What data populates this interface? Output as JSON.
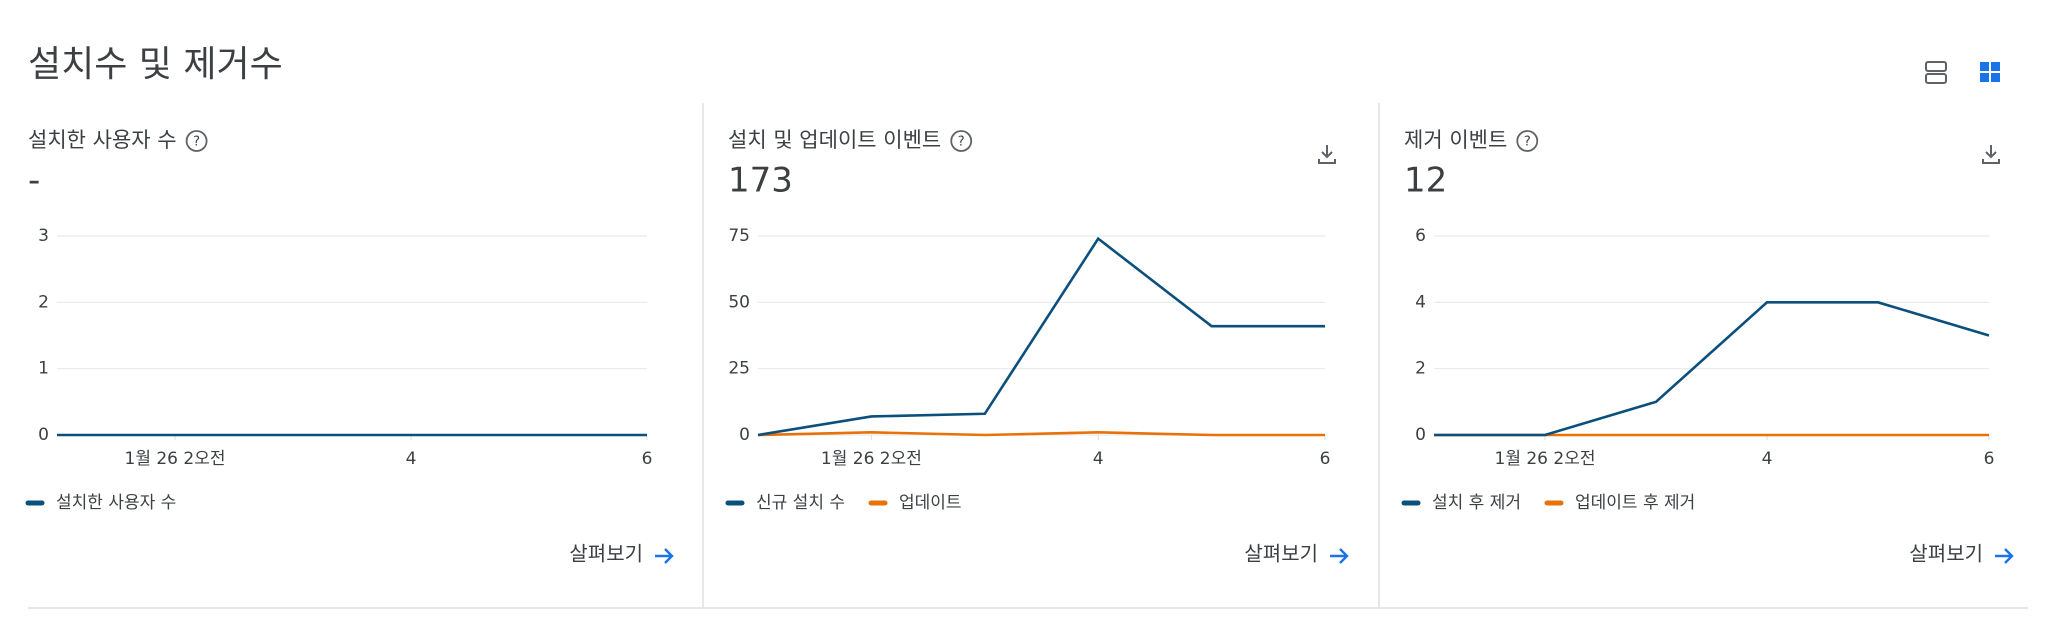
{
  "header": {
    "title": "설치수 및 제거수"
  },
  "chart_data": [
    {
      "type": "line",
      "title": "설치한 사용자 수",
      "total": "-",
      "link": "살펴보기",
      "x": [
        1,
        2,
        3,
        4,
        5,
        6
      ],
      "xlim": [
        1,
        6
      ],
      "xticks": [
        {
          "value": 2,
          "label": "1월 26 2오전"
        },
        4,
        6
      ],
      "ylim": [
        0,
        3
      ],
      "yticks": [
        0,
        1,
        2,
        3
      ],
      "grid": true,
      "series": [
        {
          "name": "설치한 사용자 수",
          "color": "#0b4f7c",
          "values": [
            0,
            0,
            0,
            0,
            0,
            0
          ]
        }
      ]
    },
    {
      "type": "line",
      "title": "설치 및 업데이트 이벤트",
      "total": 173,
      "link": "살펴보기",
      "x": [
        1,
        2,
        3,
        4,
        5,
        6
      ],
      "xlim": [
        1,
        6
      ],
      "xticks": [
        {
          "value": 2,
          "label": "1월 26 2오전"
        },
        4,
        6
      ],
      "ylim": [
        0,
        75
      ],
      "yticks": [
        0,
        25,
        50,
        75
      ],
      "grid": true,
      "series": [
        {
          "name": "신규 설치 수",
          "color": "#0b4f7c",
          "values": [
            0,
            7,
            8,
            74,
            41,
            41
          ]
        },
        {
          "name": "업데이트",
          "color": "#e8710a",
          "values": [
            0,
            1,
            0,
            1,
            0,
            0
          ]
        }
      ]
    },
    {
      "type": "line",
      "title": "제거 이벤트",
      "total": 12,
      "link": "살펴보기",
      "x": [
        1,
        2,
        3,
        4,
        5,
        6
      ],
      "xlim": [
        1,
        6
      ],
      "xticks": [
        {
          "value": 2,
          "label": "1월 26 2오전"
        },
        4,
        6
      ],
      "ylim": [
        0,
        6
      ],
      "yticks": [
        0,
        2,
        4,
        6
      ],
      "grid": true,
      "series": [
        {
          "name": "설치 후 제거",
          "color": "#0b4f7c",
          "values": [
            0,
            0,
            1,
            4,
            4,
            3
          ]
        },
        {
          "name": "업데이트 후 제거",
          "color": "#e8710a",
          "values": [
            0,
            0,
            0,
            0,
            0,
            0
          ]
        }
      ]
    }
  ]
}
